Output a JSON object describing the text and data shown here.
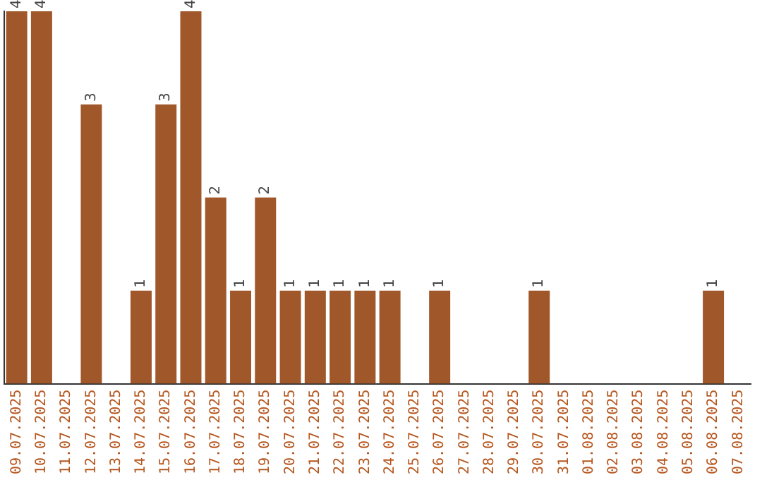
{
  "chart_data": {
    "type": "bar",
    "categories": [
      "09.07.2025",
      "10.07.2025",
      "11.07.2025",
      "12.07.2025",
      "13.07.2025",
      "14.07.2025",
      "15.07.2025",
      "16.07.2025",
      "17.07.2025",
      "18.07.2025",
      "19.07.2025",
      "20.07.2025",
      "21.07.2025",
      "22.07.2025",
      "23.07.2025",
      "24.07.2025",
      "25.07.2025",
      "26.07.2025",
      "27.07.2025",
      "28.07.2025",
      "29.07.2025",
      "30.07.2025",
      "31.07.2025",
      "01.08.2025",
      "02.08.2025",
      "03.08.2025",
      "04.08.2025",
      "05.08.2025",
      "06.08.2025",
      "07.08.2025"
    ],
    "values": [
      4,
      4,
      0,
      3,
      0,
      1,
      3,
      4,
      2,
      1,
      2,
      1,
      1,
      1,
      1,
      1,
      0,
      1,
      0,
      0,
      0,
      1,
      0,
      0,
      0,
      0,
      0,
      0,
      1,
      0
    ],
    "value_labels": [
      "4",
      "4",
      null,
      "3",
      null,
      "1",
      "3",
      "4",
      "2",
      "1",
      "2",
      "1",
      "1",
      "1",
      "1",
      "1",
      null,
      "1",
      null,
      null,
      null,
      "1",
      null,
      null,
      null,
      null,
      null,
      null,
      "1",
      null
    ],
    "color": "#a0572a",
    "ylim": [
      0,
      4
    ],
    "tick_labels": "x",
    "grid": false,
    "legend": false
  }
}
